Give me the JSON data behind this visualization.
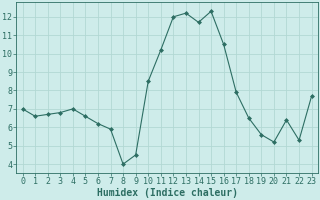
{
  "xlabel": "Humidex (Indice chaleur)",
  "ylabel": "",
  "x": [
    0,
    1,
    2,
    3,
    4,
    5,
    6,
    7,
    8,
    9,
    10,
    11,
    12,
    13,
    14,
    15,
    16,
    17,
    18,
    19,
    20,
    21,
    22,
    23
  ],
  "y": [
    7.0,
    6.6,
    6.7,
    6.8,
    7.0,
    6.6,
    6.2,
    5.9,
    4.0,
    4.5,
    8.5,
    10.2,
    12.0,
    12.2,
    11.7,
    12.3,
    10.5,
    7.9,
    6.5,
    5.6,
    5.2,
    6.4,
    5.3,
    7.7
  ],
  "line_color": "#2d6e63",
  "marker": "D",
  "marker_size": 2,
  "bg_color": "#ceecea",
  "grid_color": "#b2d8d4",
  "tick_label_color": "#2d6e63",
  "xlabel_color": "#2d6e63",
  "ylim": [
    3.5,
    12.8
  ],
  "yticks": [
    4,
    5,
    6,
    7,
    8,
    9,
    10,
    11,
    12
  ],
  "xlim": [
    -0.5,
    23.5
  ],
  "tick_fontsize": 6,
  "xlabel_fontsize": 7
}
